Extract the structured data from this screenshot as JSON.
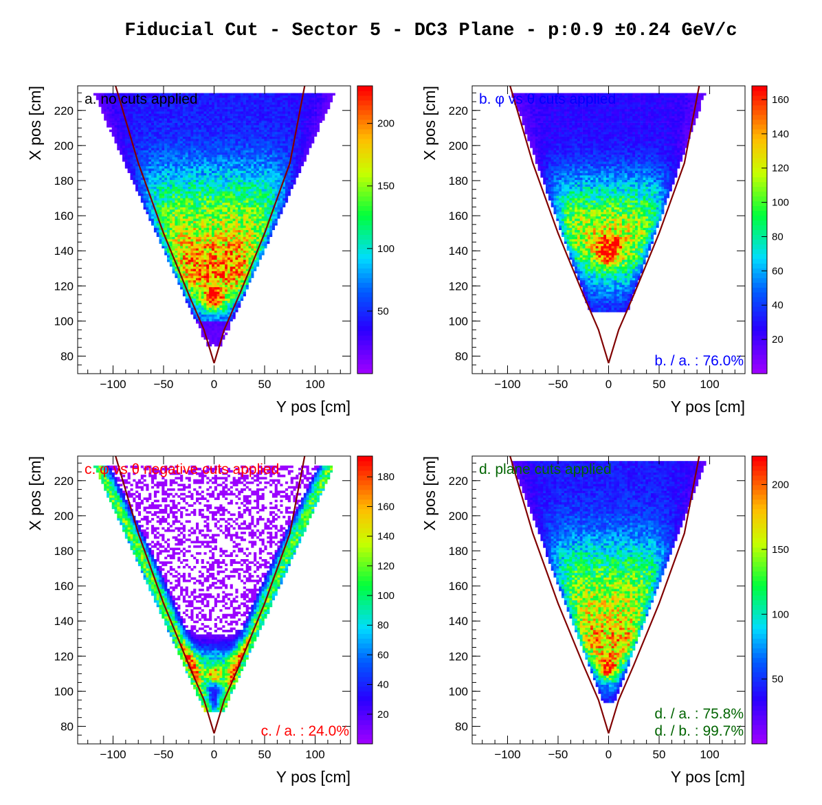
{
  "title": "Fiducial Cut - Sector 5 - DC3 Plane -  p:0.9  ±0.24 GeV/c",
  "chart_data": [
    {
      "type": "heatmap",
      "panel_label": "a. no cuts applied",
      "label_color": "#000000",
      "ratios": [],
      "xlabel": "Y pos [cm]",
      "ylabel": "X pos [cm]",
      "xlim": [
        -135,
        135
      ],
      "ylim": [
        70,
        234
      ],
      "x_ticks": [
        -100,
        -50,
        0,
        50,
        100
      ],
      "y_ticks": [
        80,
        100,
        120,
        140,
        160,
        180,
        200,
        220
      ],
      "colorbar_max": 230,
      "colorbar_ticks": [
        50,
        100,
        150,
        200
      ],
      "hot_spot": [
        0,
        113
      ],
      "distribution": "full"
    },
    {
      "type": "heatmap",
      "panel_label": "b.  φ vs θ cuts applied",
      "label_color": "#0000ff",
      "ratios": [
        "b. / a. : 76.0%"
      ],
      "xlabel": "Y pos [cm]",
      "ylabel": "X pos [cm]",
      "xlim": [
        -135,
        135
      ],
      "ylim": [
        70,
        234
      ],
      "x_ticks": [
        -100,
        -50,
        0,
        50,
        100
      ],
      "y_ticks": [
        80,
        100,
        120,
        140,
        160,
        180,
        200,
        220
      ],
      "colorbar_max": 168,
      "colorbar_ticks": [
        20,
        40,
        60,
        80,
        100,
        120,
        140,
        160
      ],
      "hot_spot": [
        5,
        140
      ],
      "distribution": "phitheta"
    },
    {
      "type": "heatmap",
      "panel_label": "c.  φ vs   θ negative cuts applied",
      "label_color": "#ff0000",
      "ratios": [
        "c. / a. : 24.0%"
      ],
      "xlabel": "Y pos [cm]",
      "ylabel": "X pos [cm]",
      "xlim": [
        -135,
        135
      ],
      "ylim": [
        70,
        234
      ],
      "x_ticks": [
        -100,
        -50,
        0,
        50,
        100
      ],
      "y_ticks": [
        80,
        100,
        120,
        140,
        160,
        180,
        200,
        220
      ],
      "colorbar_max": 194,
      "colorbar_ticks": [
        20,
        40,
        60,
        80,
        100,
        120,
        140,
        160,
        180
      ],
      "hot_spot": [
        0,
        109
      ],
      "distribution": "negative"
    },
    {
      "type": "heatmap",
      "panel_label": "d. plane cuts applied",
      "label_color": "#006400",
      "ratios": [
        "d. / a. : 75.8%",
        "d. / b. : 99.7%"
      ],
      "xlabel": "Y pos [cm]",
      "ylabel": "X pos [cm]",
      "xlim": [
        -135,
        135
      ],
      "ylim": [
        70,
        234
      ],
      "x_ticks": [
        -100,
        -50,
        0,
        50,
        100
      ],
      "y_ticks": [
        80,
        100,
        120,
        140,
        160,
        180,
        200,
        220
      ],
      "colorbar_max": 222,
      "colorbar_ticks": [
        50,
        100,
        150,
        200
      ],
      "hot_spot": [
        0,
        113
      ],
      "distribution": "plane"
    }
  ],
  "cut_line": {
    "color": "#800000",
    "left_points": [
      [
        -98,
        235
      ],
      [
        -75,
        190
      ],
      [
        -50,
        150
      ],
      [
        -25,
        115
      ],
      [
        -10,
        95
      ],
      [
        0,
        76
      ]
    ],
    "right_points": [
      [
        0,
        76
      ],
      [
        10,
        95
      ],
      [
        25,
        115
      ],
      [
        50,
        150
      ],
      [
        75,
        190
      ],
      [
        90,
        235
      ]
    ]
  }
}
